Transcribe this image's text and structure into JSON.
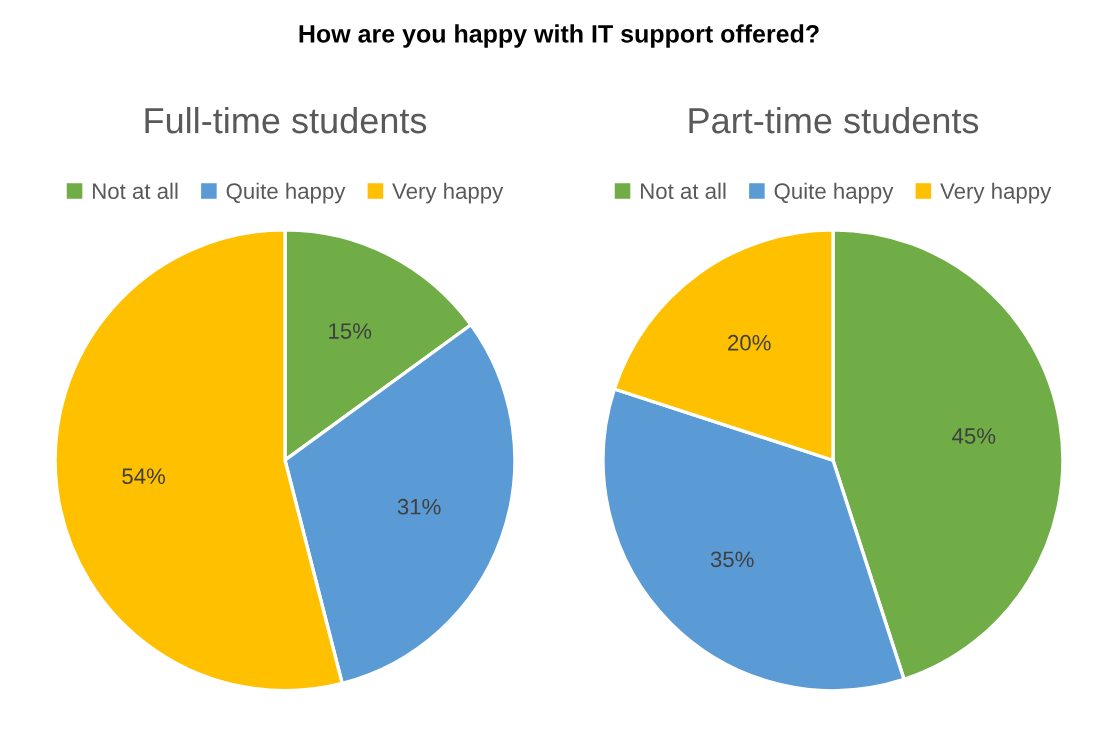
{
  "chart_data": [
    {
      "type": "pie",
      "title": "Full-time students",
      "annotations": [
        "How are you happy with IT support offered?"
      ],
      "categories": [
        "Not at all",
        "Quite happy",
        "Very happy"
      ],
      "values": [
        15,
        31,
        54
      ],
      "colors": [
        "#70ad47",
        "#5b9bd5",
        "#ffc000"
      ],
      "value_labels": [
        "15%",
        "31%",
        "54%"
      ],
      "legend": "top"
    },
    {
      "type": "pie",
      "title": "Part-time students",
      "categories": [
        "Not at all",
        "Quite happy",
        "Very happy"
      ],
      "values": [
        45,
        35,
        20
      ],
      "colors": [
        "#70ad47",
        "#5b9bd5",
        "#ffc000"
      ],
      "value_labels": [
        "45%",
        "35%",
        "20%"
      ],
      "legend": "top"
    }
  ]
}
